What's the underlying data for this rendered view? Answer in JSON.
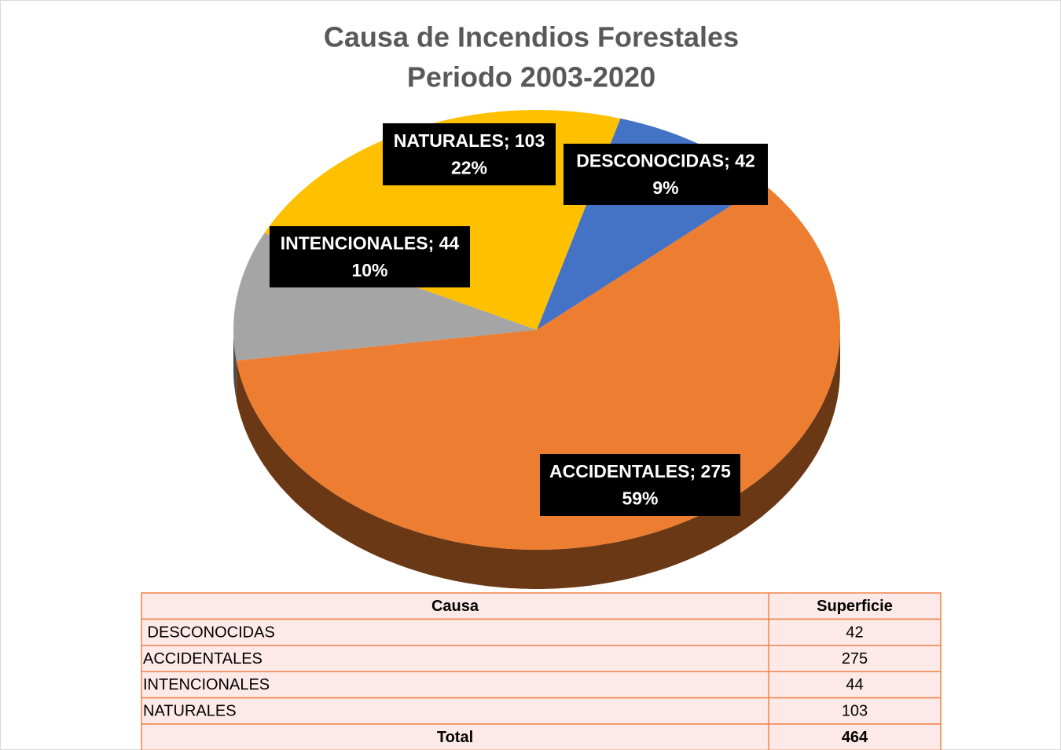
{
  "chart_data": {
    "type": "pie",
    "title": [
      "Causa de Incendios Forestales",
      "Periodo 2003-2020"
    ],
    "categories": [
      "DESCONOCIDAS",
      "ACCIDENTALES",
      "INTENCIONALES",
      "NATURALES"
    ],
    "values": [
      42,
      275,
      44,
      103
    ],
    "value_labels": [
      "DESCONOCIDAS; 42",
      "ACCIDENTALES; 275",
      "INTENCIONALES; 44",
      "NATURALES; 103"
    ],
    "percent_labels": [
      "9%",
      "59%",
      "10%",
      "22%"
    ],
    "colors": [
      "#4472c4",
      "#ed7d31",
      "#a5a5a5",
      "#ffc000"
    ]
  },
  "table": {
    "header": [
      "Causa",
      "Superficie"
    ],
    "rows": [
      [
        " DESCONOCIDAS",
        "42"
      ],
      [
        "ACCIDENTALES",
        "275"
      ],
      [
        "INTENCIONALES",
        "44"
      ],
      [
        "NATURALES",
        "103"
      ]
    ],
    "footer": [
      "Total",
      "464"
    ]
  }
}
